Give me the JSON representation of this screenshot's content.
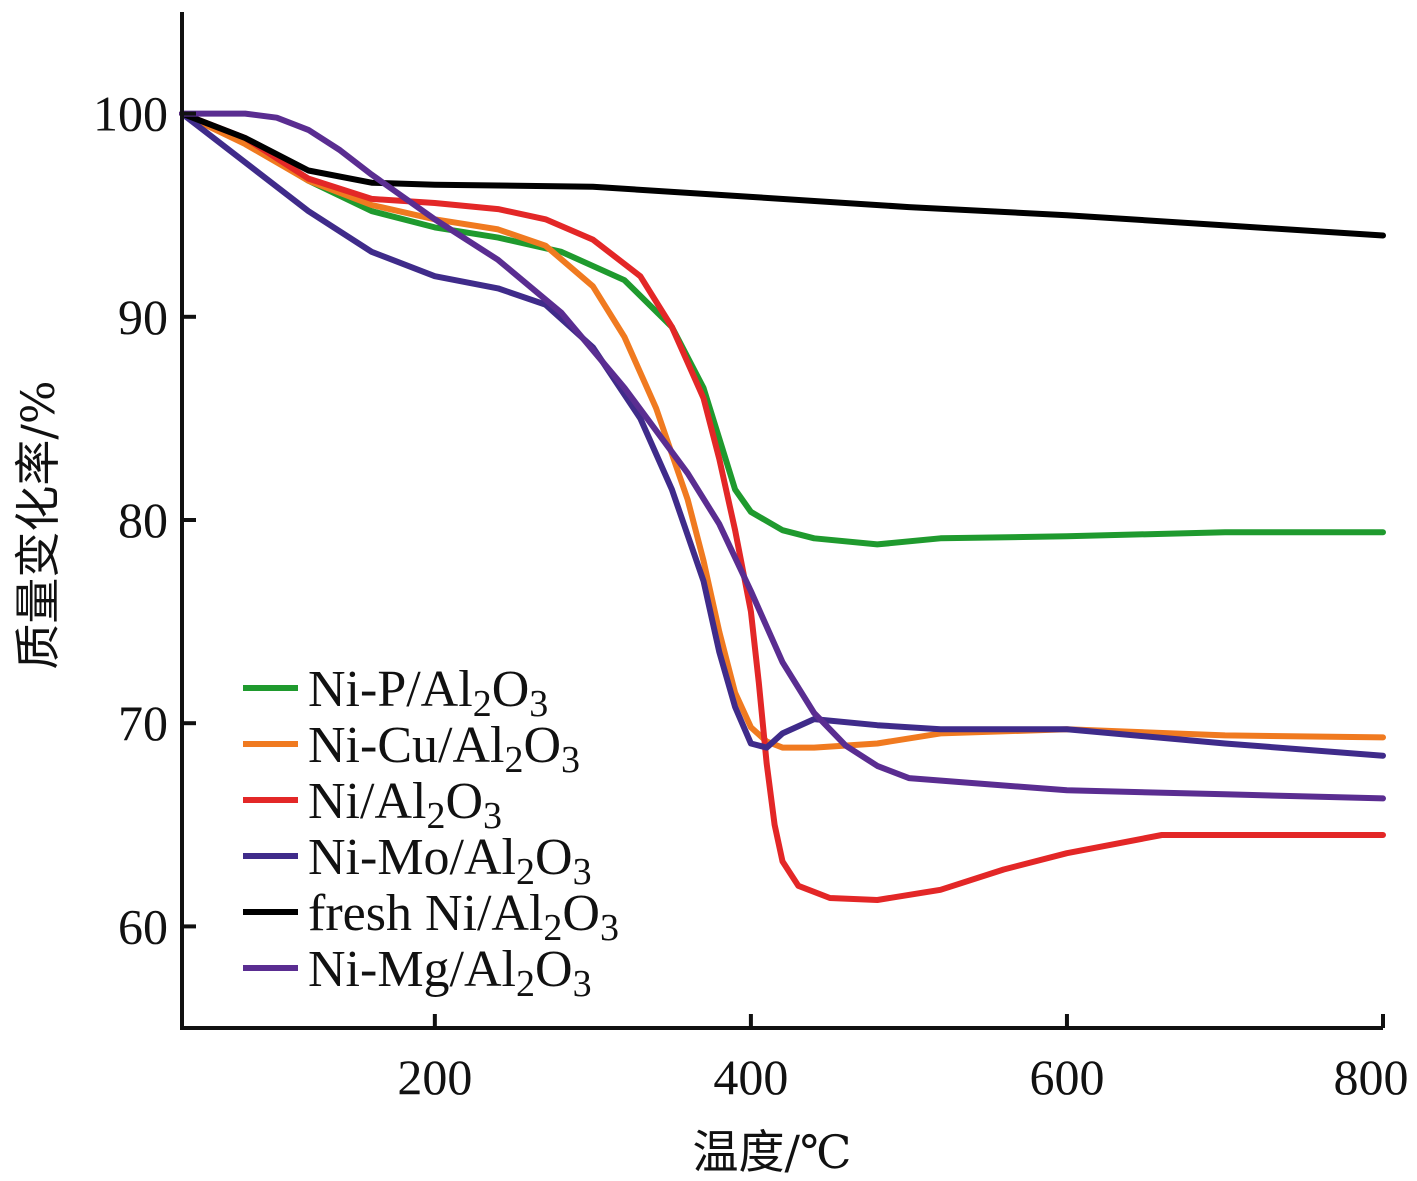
{
  "chart_data": {
    "type": "line",
    "xlabel": "温度/℃",
    "ylabel": "质量变化率/%",
    "xlim": [
      40,
      800
    ],
    "ylim": [
      55,
      105
    ],
    "x_ticks": [
      200,
      400,
      600,
      800
    ],
    "y_ticks": [
      60,
      70,
      80,
      90,
      100
    ],
    "grid": false,
    "legend_position": "bottom-left",
    "series": [
      {
        "name": "Ni-P/Al2O3",
        "label_main": "Ni-P/Al",
        "label_sub1": "2",
        "label_mid": "O",
        "label_sub2": "3",
        "color": "#1f9a2e",
        "x": [
          40,
          80,
          120,
          160,
          200,
          240,
          280,
          320,
          350,
          370,
          380,
          390,
          400,
          420,
          440,
          480,
          520,
          600,
          700,
          800
        ],
        "y": [
          100,
          98.6,
          96.7,
          95.2,
          94.4,
          93.9,
          93.2,
          91.8,
          89.5,
          86.5,
          84.0,
          81.5,
          80.4,
          79.5,
          79.1,
          78.8,
          79.1,
          79.2,
          79.4,
          79.4
        ]
      },
      {
        "name": "Ni-Cu/Al2O3",
        "label_main": "Ni-Cu/Al",
        "label_sub1": "2",
        "label_mid": "O",
        "label_sub2": "3",
        "color": "#f07a20",
        "x": [
          40,
          80,
          120,
          160,
          200,
          240,
          270,
          300,
          320,
          340,
          360,
          370,
          380,
          390,
          400,
          410,
          420,
          440,
          480,
          520,
          600,
          700,
          800
        ],
        "y": [
          100,
          98.5,
          96.7,
          95.5,
          94.8,
          94.3,
          93.5,
          91.5,
          89.0,
          85.5,
          81.0,
          78.0,
          74.5,
          71.5,
          69.8,
          69.1,
          68.8,
          68.8,
          69.0,
          69.5,
          69.7,
          69.4,
          69.3
        ]
      },
      {
        "name": "Ni/Al2O3",
        "label_main": "Ni/Al",
        "label_sub1": "2",
        "label_mid": "O",
        "label_sub2": "3",
        "color": "#e32727",
        "x": [
          40,
          80,
          120,
          160,
          200,
          240,
          270,
          300,
          330,
          350,
          370,
          380,
          390,
          400,
          405,
          410,
          415,
          420,
          430,
          450,
          480,
          520,
          560,
          600,
          660,
          700,
          800
        ],
        "y": [
          100,
          98.8,
          96.8,
          95.8,
          95.6,
          95.3,
          94.8,
          93.8,
          92.0,
          89.5,
          86.0,
          83.0,
          79.5,
          75.5,
          72.0,
          68.0,
          65.0,
          63.2,
          62.0,
          61.4,
          61.3,
          61.8,
          62.8,
          63.6,
          64.5,
          64.5,
          64.5
        ]
      },
      {
        "name": "Ni-Mo/Al2O3",
        "label_main": "Ni-Mo/Al",
        "label_sub1": "2",
        "label_mid": "O",
        "label_sub2": "3",
        "color": "#3f2b8a",
        "x": [
          40,
          80,
          120,
          160,
          200,
          240,
          270,
          300,
          330,
          350,
          370,
          380,
          390,
          400,
          410,
          420,
          440,
          480,
          520,
          600,
          700,
          800
        ],
        "y": [
          100,
          97.6,
          95.2,
          93.2,
          92.0,
          91.4,
          90.6,
          88.5,
          85.0,
          81.5,
          77.0,
          73.5,
          70.8,
          69.0,
          68.8,
          69.5,
          70.2,
          69.9,
          69.7,
          69.7,
          69.0,
          68.4
        ]
      },
      {
        "name": "fresh Ni/Al2O3",
        "label_main": "fresh Ni/Al",
        "label_sub1": "2",
        "label_mid": "O",
        "label_sub2": "3",
        "color": "#000000",
        "x": [
          40,
          80,
          120,
          160,
          200,
          300,
          400,
          500,
          600,
          700,
          800
        ],
        "y": [
          100,
          98.8,
          97.2,
          96.6,
          96.5,
          96.4,
          95.9,
          95.4,
          95.0,
          94.5,
          94.0
        ]
      },
      {
        "name": "Ni-Mg/Al2O3",
        "label_main": "Ni-Mg/Al",
        "label_sub1": "2",
        "label_mid": "O",
        "label_sub2": "3",
        "color": "#5a2d91",
        "x": [
          40,
          60,
          80,
          100,
          120,
          140,
          160,
          200,
          240,
          280,
          320,
          360,
          380,
          400,
          420,
          440,
          460,
          480,
          500,
          550,
          600,
          700,
          800
        ],
        "y": [
          100,
          100,
          100,
          99.8,
          99.2,
          98.2,
          97.0,
          94.8,
          92.8,
          90.2,
          86.5,
          82.3,
          79.8,
          76.5,
          73.0,
          70.5,
          68.9,
          67.9,
          67.3,
          67.0,
          66.7,
          66.5,
          66.3
        ]
      }
    ]
  }
}
